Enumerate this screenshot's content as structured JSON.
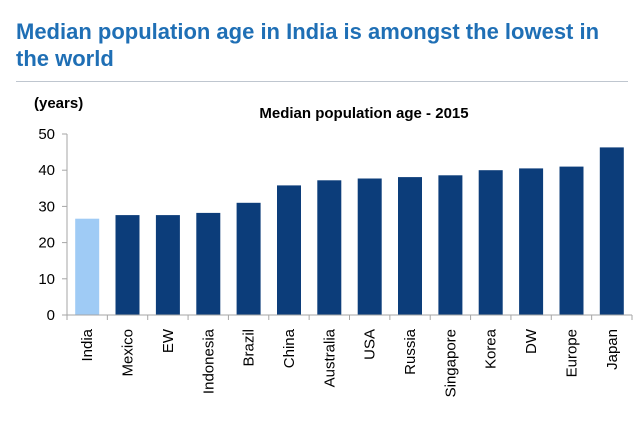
{
  "headline": "Median population age in India is amongst the lowest in the world",
  "colors": {
    "headline": "#1f6fb5",
    "bar": "#0c3d7a",
    "highlight": "#9fcbf5",
    "axis": "#a6a6a6"
  },
  "chart_data": {
    "type": "bar",
    "title": "Median population age - 2015",
    "ylabel": "(years)",
    "xlabel": "",
    "ylim": [
      0,
      50
    ],
    "yticks": [
      0,
      10,
      20,
      30,
      40,
      50
    ],
    "grid": false,
    "categories": [
      "India",
      "Mexico",
      "EW",
      "Indonesia",
      "Brazil",
      "China",
      "Australia",
      "USA",
      "Russia",
      "Singapore",
      "Korea",
      "DW",
      "Europe",
      "Japan"
    ],
    "values": [
      26.6,
      27.6,
      27.6,
      28.2,
      31.0,
      35.8,
      37.2,
      37.7,
      38.1,
      38.6,
      40.0,
      40.5,
      41.0,
      46.3
    ],
    "highlight": "India"
  }
}
